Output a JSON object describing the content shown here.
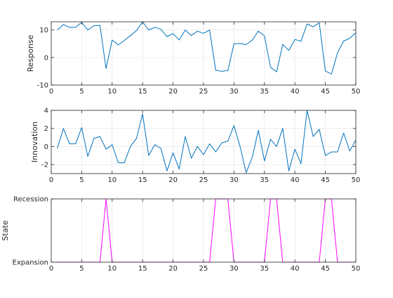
{
  "chart_data": [
    {
      "type": "line",
      "ylabel": "Response",
      "xlim": [
        0,
        50
      ],
      "ylim": [
        -10,
        13
      ],
      "xticks": [
        0,
        5,
        10,
        15,
        20,
        25,
        30,
        35,
        40,
        45,
        50
      ],
      "yticks": [
        -10,
        0,
        10
      ],
      "grid": true,
      "color": "#0072BD",
      "series": [
        {
          "x": [
            1,
            2,
            3,
            4,
            5,
            6,
            7,
            8,
            9,
            10,
            11,
            12,
            13,
            14,
            15,
            16,
            17,
            18,
            19,
            20,
            21,
            22,
            23,
            24,
            25,
            26,
            27,
            28,
            29,
            30,
            31,
            32,
            33,
            34,
            35,
            36,
            37,
            38,
            39,
            40,
            41,
            42,
            43,
            44,
            45,
            46,
            47,
            48,
            49,
            50
          ],
          "values": [
            10,
            12,
            11,
            11,
            12.8,
            10,
            11.6,
            11.7,
            -4,
            6.4,
            4.6,
            6.2,
            8,
            9.8,
            13,
            10,
            11,
            10.3,
            7.6,
            8.7,
            6.4,
            10,
            8,
            9.6,
            8.8,
            10,
            -4.6,
            -5,
            -4.7,
            5,
            5.1,
            4.7,
            6.3,
            9.6,
            7.9,
            -3.5,
            -5.2,
            4.8,
            2.6,
            6.6,
            5.9,
            12.2,
            11.2,
            12.6,
            -4.9,
            -6,
            1.7,
            6,
            7,
            9
          ]
        }
      ]
    },
    {
      "type": "line",
      "ylabel": "Innovation",
      "xlim": [
        0,
        50
      ],
      "ylim": [
        -3,
        4
      ],
      "xticks": [
        0,
        5,
        10,
        15,
        20,
        25,
        30,
        35,
        40,
        45,
        50
      ],
      "yticks": [
        -2,
        0,
        2,
        4
      ],
      "grid": true,
      "color": "#0072BD",
      "series": [
        {
          "x": [
            1,
            2,
            3,
            4,
            5,
            6,
            7,
            8,
            9,
            10,
            11,
            12,
            13,
            14,
            15,
            16,
            17,
            18,
            19,
            20,
            21,
            22,
            23,
            24,
            25,
            26,
            27,
            28,
            29,
            30,
            31,
            32,
            33,
            34,
            35,
            36,
            37,
            38,
            39,
            40,
            41,
            42,
            43,
            44,
            45,
            46,
            47,
            48,
            49,
            50
          ],
          "values": [
            -0.2,
            2,
            0.3,
            0.3,
            2.1,
            -1.1,
            0.9,
            1.1,
            -0.3,
            0.2,
            -1.8,
            -1.8,
            0,
            0.9,
            3.6,
            -1,
            0.2,
            -0.2,
            -2.7,
            -0.7,
            -2.5,
            1.1,
            -1.3,
            0,
            -0.9,
            0.3,
            -0.6,
            0.4,
            0.6,
            2.3,
            0,
            -2.9,
            -1.2,
            1.8,
            -1.6,
            0.8,
            0,
            2,
            -2.7,
            -0.3,
            -1.9,
            4,
            1.1,
            1.9,
            -1,
            -0.6,
            -0.6,
            1.5,
            -0.5,
            0.7
          ]
        }
      ]
    },
    {
      "type": "line",
      "ylabel": "State",
      "xlim": [
        0,
        50
      ],
      "ylim": [
        1,
        2
      ],
      "xticks": [
        0,
        5,
        10,
        15,
        20,
        25,
        30,
        35,
        40,
        45,
        50
      ],
      "yticks": [
        1,
        2
      ],
      "yticklabels": [
        "Expansion",
        "Recession"
      ],
      "grid": true,
      "color": "#FF00FF",
      "series": [
        {
          "x": [
            1,
            2,
            3,
            4,
            5,
            6,
            7,
            8,
            9,
            10,
            11,
            12,
            13,
            14,
            15,
            16,
            17,
            18,
            19,
            20,
            21,
            22,
            23,
            24,
            25,
            26,
            27,
            28,
            29,
            30,
            31,
            32,
            33,
            34,
            35,
            36,
            37,
            38,
            39,
            40,
            41,
            42,
            43,
            44,
            45,
            46,
            47,
            48,
            49,
            50
          ],
          "values": [
            1,
            1,
            1,
            1,
            1,
            1,
            1,
            1,
            2,
            1,
            1,
            1,
            1,
            1,
            1,
            1,
            1,
            1,
            1,
            1,
            1,
            1,
            1,
            1,
            1,
            1,
            2,
            2,
            2,
            1,
            1,
            1,
            1,
            1,
            1,
            2,
            2,
            1,
            1,
            1,
            1,
            1,
            1,
            1,
            2,
            2,
            1,
            1,
            1,
            1
          ]
        }
      ]
    }
  ]
}
